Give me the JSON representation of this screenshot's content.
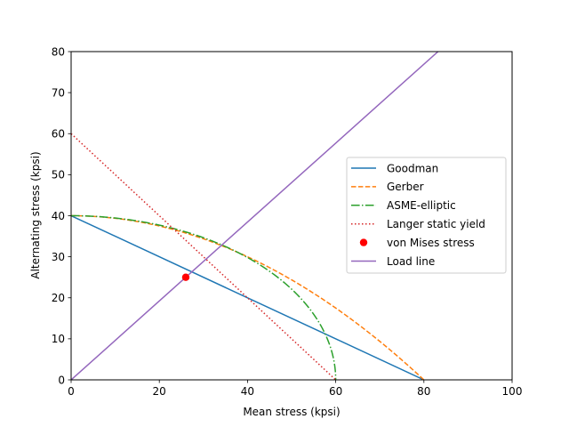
{
  "chart_data": {
    "type": "line",
    "title": "",
    "xlabel": "Mean stress (kpsi)",
    "ylabel": "Alternating stress (kpsi)",
    "xlim": [
      0,
      100
    ],
    "ylim": [
      0,
      80
    ],
    "xticks": [
      0,
      20,
      40,
      60,
      80,
      100
    ],
    "yticks": [
      0,
      10,
      20,
      30,
      40,
      50,
      60,
      70,
      80
    ],
    "grid": false,
    "legend_placement": "center-right",
    "Se": 40,
    "Sut": 80,
    "Sy": 60,
    "series": [
      {
        "name": "Goodman",
        "color": "#1f77b4",
        "style": "solid",
        "x": [
          0,
          80
        ],
        "y": [
          40,
          0
        ]
      },
      {
        "name": "Gerber",
        "color": "#ff7f0e",
        "style": "dashed",
        "x": [
          0,
          10,
          20,
          30,
          40,
          50,
          60,
          70,
          80
        ],
        "y": [
          40,
          39.375,
          37.5,
          34.375,
          30,
          24.375,
          17.5,
          9.375,
          0
        ]
      },
      {
        "name": "ASME-elliptic",
        "color": "#2ca02c",
        "style": "dashdot",
        "x": [
          0,
          10,
          20,
          30,
          40,
          50,
          55,
          58,
          60
        ],
        "y": [
          40,
          39.44,
          37.71,
          34.64,
          29.81,
          22.11,
          15.99,
          10.07,
          0
        ]
      },
      {
        "name": "Langer static yield",
        "color": "#d62728",
        "style": "dotted",
        "x": [
          0,
          60
        ],
        "y": [
          60,
          0
        ]
      },
      {
        "name": "von Mises stress",
        "color": "#ff0000",
        "style": "marker",
        "x": [
          26
        ],
        "y": [
          25
        ]
      },
      {
        "name": "Load line",
        "color": "#9467bd",
        "style": "solid",
        "x": [
          0,
          83.2
        ],
        "y": [
          0,
          80
        ]
      }
    ]
  }
}
